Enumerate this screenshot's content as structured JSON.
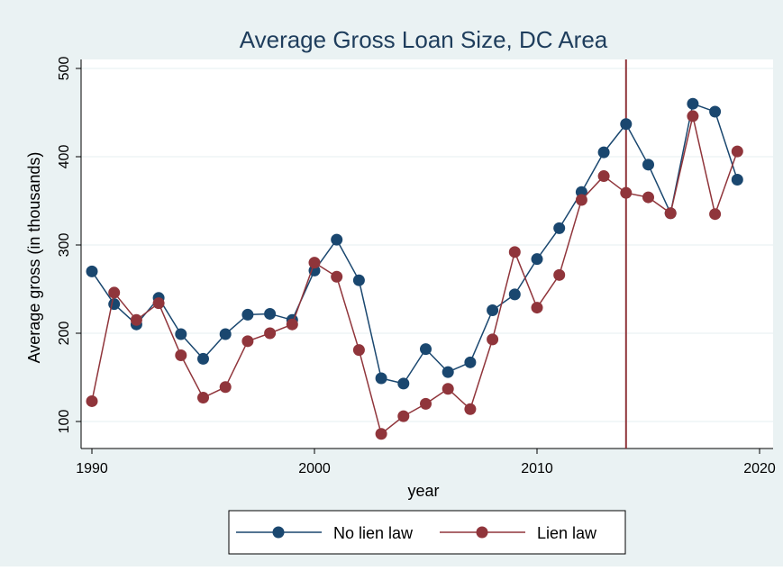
{
  "chart_data": {
    "type": "line",
    "title": "Average Gross Loan Size, DC Area",
    "xlabel": "year",
    "ylabel": "Average gross (in thousands)",
    "xlim": [
      1990,
      2020
    ],
    "ylim": [
      85,
      510
    ],
    "x_ticks": [
      1990,
      2000,
      2010,
      2020
    ],
    "y_ticks": [
      100,
      200,
      300,
      400,
      500
    ],
    "grid": "horizontal",
    "legend_position": "bottom",
    "reference_line_x": 2014,
    "x": [
      1990,
      1991,
      1992,
      1993,
      1994,
      1995,
      1996,
      1997,
      1998,
      1999,
      2000,
      2001,
      2002,
      2003,
      2004,
      2005,
      2006,
      2007,
      2008,
      2009,
      2010,
      2011,
      2012,
      2013,
      2014,
      2015,
      2016,
      2017,
      2018,
      2019
    ],
    "series": [
      {
        "name": "No lien law",
        "color": "#1a476f",
        "values": [
          270,
          233,
          210,
          240,
          199,
          171,
          199,
          221,
          222,
          215,
          271,
          306,
          260,
          149,
          143,
          182,
          156,
          167,
          226,
          244,
          284,
          319,
          360,
          405,
          437,
          391,
          336,
          460,
          451,
          374
        ]
      },
      {
        "name": "Lien law",
        "color": "#90353b",
        "values": [
          123,
          246,
          215,
          234,
          175,
          127,
          139,
          191,
          200,
          210,
          280,
          264,
          181,
          86,
          106,
          120,
          137,
          114,
          193,
          292,
          229,
          266,
          351,
          378,
          359,
          354,
          336,
          446,
          335,
          406
        ]
      }
    ],
    "colors": {
      "background": "#eaf2f3",
      "plot_background": "#ffffff",
      "grid": "#eaf2f3",
      "title": "#1e3d5c",
      "reference_line": "#90353b"
    }
  }
}
